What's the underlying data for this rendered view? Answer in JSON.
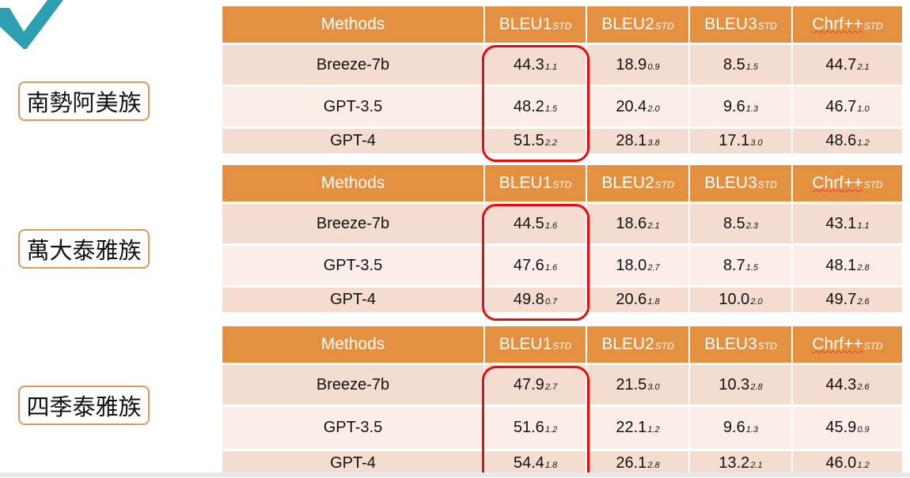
{
  "headers": {
    "methods": "Methods",
    "bleu1": "BLEU1",
    "bleu2": "BLEU2",
    "bleu3": "BLEU3",
    "chrf": "Chrf++",
    "std": "STD"
  },
  "groups": [
    {
      "label": "南勢阿美族",
      "rows": [
        {
          "method": "Breeze-7b",
          "bleu1": "44.3",
          "bleu1_std": "1.1",
          "bleu2": "18.9",
          "bleu2_std": "0.9",
          "bleu3": "8.5",
          "bleu3_std": "1.5",
          "chrf": "44.7",
          "chrf_std": "2.1"
        },
        {
          "method": "GPT-3.5",
          "bleu1": "48.2",
          "bleu1_std": "1.5",
          "bleu2": "20.4",
          "bleu2_std": "2.0",
          "bleu3": "9.6",
          "bleu3_std": "1.3",
          "chrf": "46.7",
          "chrf_std": "1.0"
        },
        {
          "method": "GPT-4",
          "bleu1": "51.5",
          "bleu1_std": "2.2",
          "bleu2": "28.1",
          "bleu2_std": "3.8",
          "bleu3": "17.1",
          "bleu3_std": "3.0",
          "chrf": "48.6",
          "chrf_std": "1.2"
        }
      ]
    },
    {
      "label": "萬大泰雅族",
      "rows": [
        {
          "method": "Breeze-7b",
          "bleu1": "44.5",
          "bleu1_std": "1.6",
          "bleu2": "18.6",
          "bleu2_std": "2.1",
          "bleu3": "8.5",
          "bleu3_std": "2.3",
          "chrf": "43.1",
          "chrf_std": "1.1"
        },
        {
          "method": "GPT-3.5",
          "bleu1": "47.6",
          "bleu1_std": "1.6",
          "bleu2": "18.0",
          "bleu2_std": "2.7",
          "bleu3": "8.7",
          "bleu3_std": "1.5",
          "chrf": "48.1",
          "chrf_std": "2.8"
        },
        {
          "method": "GPT-4",
          "bleu1": "49.8",
          "bleu1_std": "0.7",
          "bleu2": "20.6",
          "bleu2_std": "1.8",
          "bleu3": "10.0",
          "bleu3_std": "2.0",
          "chrf": "49.7",
          "chrf_std": "2.6"
        }
      ]
    },
    {
      "label": "四季泰雅族",
      "rows": [
        {
          "method": "Breeze-7b",
          "bleu1": "47.9",
          "bleu1_std": "2.7",
          "bleu2": "21.5",
          "bleu2_std": "3.0",
          "bleu3": "10.3",
          "bleu3_std": "2.8",
          "chrf": "44.3",
          "chrf_std": "2.6"
        },
        {
          "method": "GPT-3.5",
          "bleu1": "51.6",
          "bleu1_std": "1.2",
          "bleu2": "22.1",
          "bleu2_std": "1.2",
          "bleu3": "9.6",
          "bleu3_std": "1.3",
          "chrf": "45.9",
          "chrf_std": "0.9"
        },
        {
          "method": "GPT-4",
          "bleu1": "54.4",
          "bleu1_std": "1.8",
          "bleu2": "26.1",
          "bleu2_std": "2.8",
          "bleu3": "13.2",
          "bleu3_std": "2.1",
          "chrf": "46.0",
          "chrf_std": "1.2"
        }
      ]
    }
  ],
  "colors": {
    "header_bg": "#e39140",
    "row_dark": "#f5dcd0",
    "row_light": "#fbeee9",
    "highlight": "#e30d0d",
    "label_border": "#e0975a"
  }
}
